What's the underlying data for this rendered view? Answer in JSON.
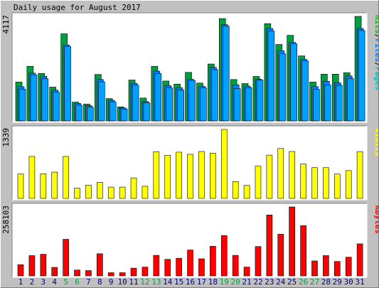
{
  "chart_data": {
    "type": "bar",
    "title": "Daily usage for August 2017",
    "days": [
      "1",
      "2",
      "3",
      "4",
      "5",
      "6",
      "7",
      "8",
      "9",
      "10",
      "11",
      "12",
      "13",
      "14",
      "15",
      "16",
      "17",
      "18",
      "19",
      "20",
      "21",
      "22",
      "23",
      "24",
      "25",
      "26",
      "27",
      "28",
      "29",
      "30",
      "31"
    ],
    "weekend_days": [
      "5",
      "6",
      "12",
      "13",
      "19",
      "20",
      "26",
      "27"
    ],
    "panels": [
      {
        "name": "hits-files-pages",
        "max_label": "4117",
        "ylim": [
          0,
          4117
        ],
        "legend": [
          {
            "label": "Pages",
            "color": "#00c0c0"
          },
          {
            "label": "Files",
            "color": "#0080ff"
          },
          {
            "label": "Hits",
            "color": "#00c000"
          }
        ],
        "series": [
          {
            "name": "Hits",
            "color": "#00a040",
            "values": [
              1530,
              2150,
              1870,
              1330,
              3430,
              740,
              660,
              1830,
              880,
              550,
              1610,
              900,
              2150,
              1570,
              1450,
              1910,
              1490,
              2240,
              4030,
              1630,
              1470,
              1750,
              3830,
              3010,
              3370,
              2560,
              1530,
              1840,
              1840,
              1900,
              4117
            ]
          },
          {
            "name": "Files",
            "color": "#0080ff",
            "values": [
              1350,
              1880,
              1760,
              1210,
              2990,
              690,
              600,
              1630,
              810,
              510,
              1480,
              760,
              1960,
              1390,
              1310,
              1640,
              1360,
              2110,
              3790,
              1420,
              1370,
              1640,
              3640,
              2760,
              3090,
              2420,
              1350,
              1560,
              1500,
              1770,
              3640
            ]
          },
          {
            "name": "Pages",
            "color": "#00a0ff",
            "values": [
              1250,
              1810,
              1660,
              1130,
              2930,
              620,
              540,
              1540,
              740,
              470,
              1410,
              710,
              1860,
              1300,
              1220,
              1590,
              1300,
              2020,
              3730,
              1270,
              1310,
              1610,
              3540,
              2640,
              3040,
              2360,
              1240,
              1410,
              1400,
              1670,
              3560
            ]
          }
        ]
      },
      {
        "name": "visits",
        "max_label": "1339",
        "ylim": [
          0,
          1339
        ],
        "legend": [
          {
            "label": "Visits",
            "color": "#ffff00"
          }
        ],
        "series": [
          {
            "name": "Visits",
            "color": "#ffff00",
            "values": [
              473,
              815,
              477,
              510,
              815,
              199,
              256,
              312,
              220,
              220,
              398,
              236,
              908,
              836,
              898,
              857,
              911,
              879,
              1339,
              327,
              252,
              625,
              840,
              970,
              911,
              668,
              597,
              597,
              473,
              540,
              908
            ]
          }
        ]
      },
      {
        "name": "kbytes",
        "max_label": "258103",
        "ylim": [
          0,
          258103
        ],
        "legend": [
          {
            "label": "KBytes",
            "color": "#ff0000"
          }
        ],
        "series": [
          {
            "name": "KBytes",
            "color": "#ff0000",
            "values": [
              42000,
              76000,
              81000,
              32000,
              137000,
              22000,
              20000,
              83000,
              12000,
              12000,
              29000,
              33000,
              77000,
              62000,
              66000,
              97000,
              64000,
              111000,
              151000,
              77000,
              33000,
              110000,
              228000,
              156000,
              258103,
              188000,
              56000,
              76000,
              54000,
              70000,
              120000
            ]
          }
        ]
      }
    ]
  },
  "colors": {
    "background": "#c0c0c0",
    "plot_background": "#ffffff",
    "weekend_label": "#00a040",
    "weekday_label": "#000080",
    "text": "#000000"
  }
}
